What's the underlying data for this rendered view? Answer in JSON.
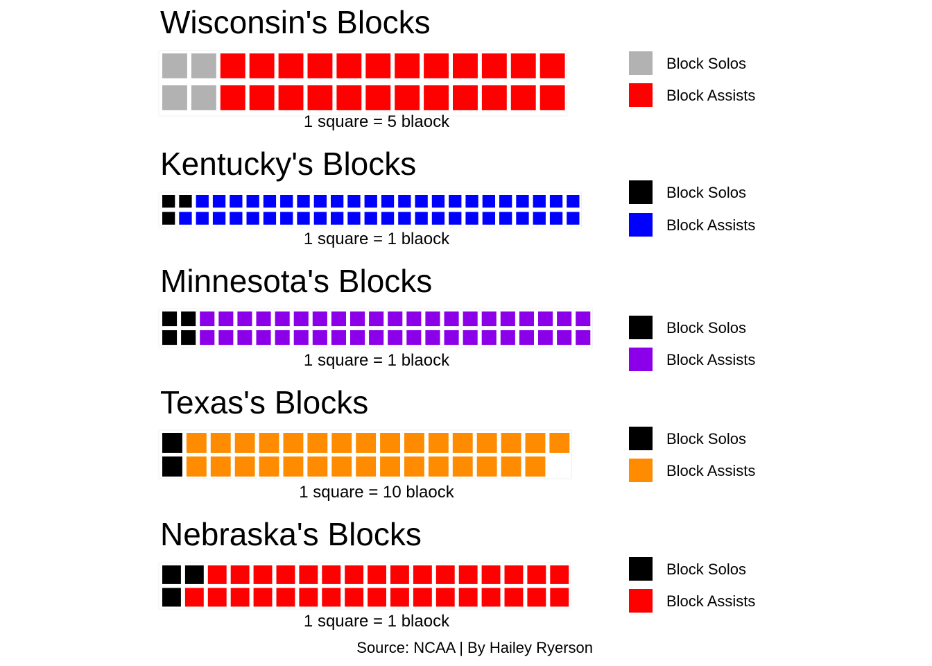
{
  "source_note": "Source: NCAA | By Hailey Ryerson",
  "chart_data": [
    {
      "type": "waffle",
      "title": "Wisconsin's Blocks",
      "caption": "1 square = 5 blaock",
      "rows": 2,
      "series": [
        {
          "name": "Block Solos",
          "squares": 4,
          "color": "#B2B2B2"
        },
        {
          "name": "Block Assists",
          "squares": 24,
          "color": "#FF0000"
        }
      ],
      "legend": {
        "position": "right",
        "labels": [
          "Block Solos",
          "Block Assists"
        ]
      }
    },
    {
      "type": "waffle",
      "title": "Kentucky's Blocks",
      "caption": "1 square = 1 blaock",
      "rows": 2,
      "series": [
        {
          "name": "Block Solos",
          "squares": 3,
          "color": "#000000"
        },
        {
          "name": "Block Assists",
          "squares": 47,
          "color": "#0000FF"
        }
      ],
      "legend": {
        "position": "right",
        "labels": [
          "Block Solos",
          "Block Assists"
        ]
      }
    },
    {
      "type": "waffle",
      "title": "Minnesota's Blocks",
      "caption": "1 square = 1 blaock",
      "rows": 2,
      "series": [
        {
          "name": "Block Solos",
          "squares": 4,
          "color": "#000000"
        },
        {
          "name": "Block Assists",
          "squares": 42,
          "color": "#8B00E8"
        }
      ],
      "legend": {
        "position": "right",
        "labels": [
          "Block Solos",
          "Block Assists"
        ]
      }
    },
    {
      "type": "waffle",
      "title": "Texas's Blocks",
      "caption": "1 square = 10 blaock",
      "rows": 2,
      "series": [
        {
          "name": "Block Solos",
          "squares": 2,
          "color": "#000000"
        },
        {
          "name": "Block Assists",
          "squares": 31,
          "color": "#FF8C00"
        }
      ],
      "legend": {
        "position": "right",
        "labels": [
          "Block Solos",
          "Block Assists"
        ]
      }
    },
    {
      "type": "waffle",
      "title": "Nebraska's Blocks",
      "caption": "1 square = 1 blaock",
      "rows": 2,
      "series": [
        {
          "name": "Block Solos",
          "squares": 3,
          "color": "#000000"
        },
        {
          "name": "Block Assists",
          "squares": 33,
          "color": "#FF0000"
        }
      ],
      "legend": {
        "position": "right",
        "labels": [
          "Block Solos",
          "Block Assists"
        ]
      }
    }
  ]
}
